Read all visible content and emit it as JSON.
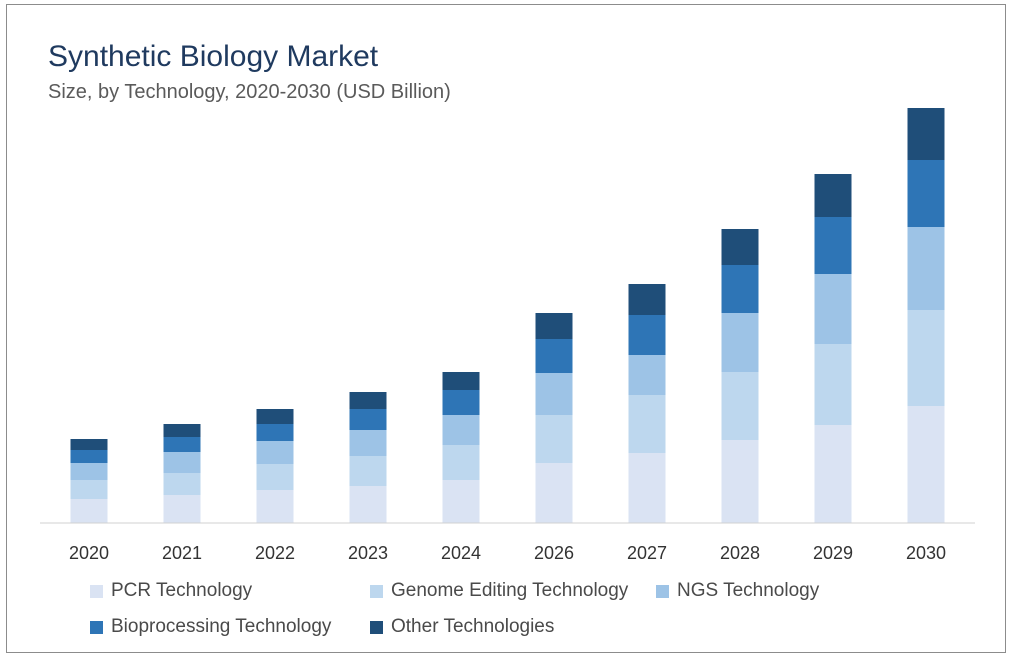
{
  "header": {
    "title": "Synthetic Biology Market",
    "subtitle": "Size, by Technology, 2020-2030 (USD Billion)"
  },
  "chart_data": {
    "type": "bar",
    "stacked": true,
    "categories": [
      "2020",
      "2021",
      "2022",
      "2023",
      "2024",
      "2026",
      "2027",
      "2028",
      "2029",
      "2030"
    ],
    "series": [
      {
        "name": "PCR Technology",
        "color": "#dae3f3",
        "values": [
          24,
          28,
          33,
          37,
          43,
          60,
          70,
          83,
          98,
          117
        ]
      },
      {
        "name": "Genome Editing Technology",
        "color": "#bdd7ee",
        "values": [
          19,
          22,
          26,
          30,
          35,
          48,
          58,
          68,
          81,
          96
        ]
      },
      {
        "name": "NGS Technology",
        "color": "#9dc3e6",
        "values": [
          17,
          21,
          23,
          26,
          30,
          42,
          40,
          59,
          70,
          83
        ]
      },
      {
        "name": "Bioprocessing Technology",
        "color": "#2e75b6",
        "values": [
          13,
          15,
          17,
          21,
          25,
          34,
          40,
          48,
          57,
          67
        ]
      },
      {
        "name": "Other Technologies",
        "color": "#1f4e79",
        "values": [
          11,
          13,
          15,
          17,
          18,
          26,
          31,
          36,
          43,
          52
        ]
      }
    ],
    "ylim": [
      0,
      420
    ],
    "grid": false,
    "legend_position": "bottom"
  }
}
